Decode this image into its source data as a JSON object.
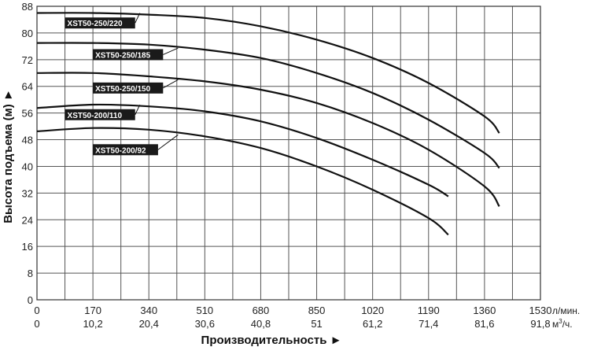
{
  "chart_data": {
    "type": "line",
    "ylabel": "Высота подъема (м) ►",
    "xlabel": "Производительность ►",
    "ylim": [
      0,
      88
    ],
    "xlim": [
      0,
      1530
    ],
    "grid": true,
    "y_ticks": [
      "0",
      "8",
      "16",
      "24",
      "32",
      "40",
      "48",
      "56",
      "64",
      "72",
      "80",
      "88"
    ],
    "x_ticks_lmin": [
      "0",
      "170",
      "340",
      "510",
      "680",
      "850",
      "1020",
      "1190",
      "1360",
      "1530"
    ],
    "x_ticks_m3h": [
      "0",
      "10,2",
      "20,4",
      "30,6",
      "40,8",
      "51",
      "61,2",
      "71,4",
      "81,6",
      "91,8"
    ],
    "x_unit_lmin": "л/мин.",
    "x_unit_m3h_base": "м",
    "x_unit_m3h_sup": "3",
    "x_unit_m3h_tail": "/ч.",
    "series": [
      {
        "name": "XST50-250/220",
        "x": [
          0,
          170,
          340,
          510,
          680,
          850,
          1020,
          1190,
          1360,
          1405
        ],
        "y": [
          86,
          86,
          85.5,
          84.5,
          82,
          78,
          72.5,
          65,
          55,
          50
        ]
      },
      {
        "name": "XST50-250/185",
        "x": [
          0,
          170,
          340,
          510,
          680,
          850,
          1020,
          1190,
          1360,
          1405
        ],
        "y": [
          77,
          77,
          76.5,
          75,
          72.5,
          68,
          62,
          54,
          44,
          39.5
        ]
      },
      {
        "name": "XST50-250/150",
        "x": [
          0,
          170,
          340,
          510,
          680,
          850,
          1020,
          1190,
          1360,
          1405
        ],
        "y": [
          68,
          68,
          67,
          65.5,
          63,
          59,
          53,
          45,
          34,
          28
        ]
      },
      {
        "name": "XST50-200/110",
        "x": [
          0,
          170,
          340,
          510,
          680,
          850,
          1020,
          1190,
          1250
        ],
        "y": [
          57.5,
          58.5,
          58,
          56.5,
          53.5,
          48.5,
          42,
          34.5,
          31
        ]
      },
      {
        "name": "XST50-200/92",
        "x": [
          0,
          170,
          340,
          510,
          680,
          850,
          1020,
          1190,
          1250
        ],
        "y": [
          50.5,
          51.5,
          51,
          49,
          45.5,
          40,
          33,
          24.5,
          19.5
        ]
      }
    ],
    "label_anchor_x": [
      1,
      2,
      2,
      1,
      2
    ],
    "label_anchor_y": [
      83,
      73.5,
      63.5,
      55.5,
      45
    ]
  }
}
